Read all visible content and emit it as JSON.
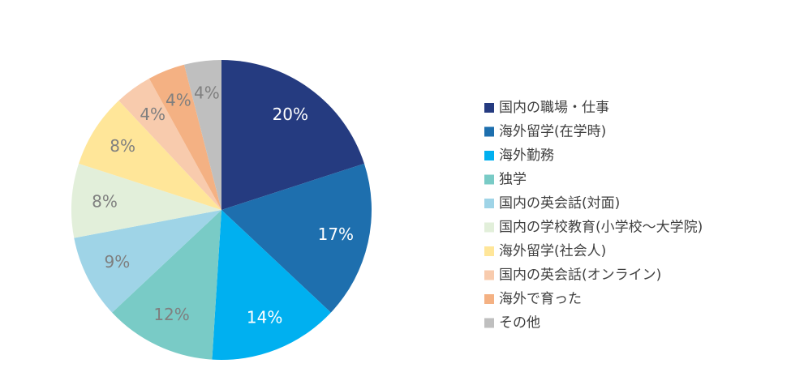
{
  "chart_data": {
    "type": "pie",
    "categories": [
      "国内の職場・仕事",
      "海外留学(在学時)",
      "海外勤務",
      "独学",
      "国内の英会話(対面)",
      "国内の学校教育(小学校〜大学院)",
      "海外留学(社会人)",
      "国内の英会話(オンライン)",
      "海外で育った",
      "その他"
    ],
    "values": [
      20,
      17,
      14,
      12,
      9,
      8,
      8,
      4,
      4,
      4
    ],
    "value_labels": [
      "20%",
      "17%",
      "14%",
      "12%",
      "9%",
      "8%",
      "8%",
      "4%",
      "4%",
      "4%"
    ],
    "colors": [
      "#253b80",
      "#1e6fae",
      "#00b0f0",
      "#79cbc6",
      "#9fd4e7",
      "#e2efda",
      "#ffe699",
      "#f8cbad",
      "#f4b183",
      "#bfbfbf"
    ],
    "legend": "right"
  }
}
